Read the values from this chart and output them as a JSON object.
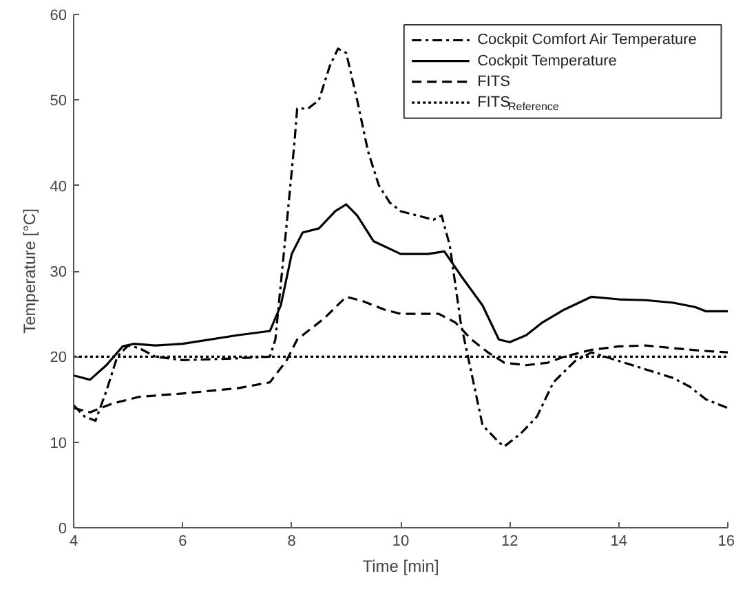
{
  "chart_data": {
    "type": "line",
    "xlabel": "Time [min]",
    "ylabel": "Temperature [°C]",
    "xlim": [
      4,
      16
    ],
    "ylim": [
      0,
      60
    ],
    "xticks": [
      4,
      6,
      8,
      10,
      12,
      14,
      16
    ],
    "yticks": [
      0,
      10,
      20,
      30,
      40,
      50,
      60
    ],
    "grid": false,
    "legend": "top right",
    "marker": "none",
    "series": [
      {
        "name": "Cockpit Comfort Air Temperature",
        "color": "#000000",
        "line_style": "dashdot",
        "x": [
          4,
          4.2,
          4.4,
          4.6,
          4.8,
          5.0,
          5.2,
          5.5,
          6,
          7,
          7.6,
          7.7,
          7.9,
          8.05,
          8.1,
          8.3,
          8.5,
          8.7,
          8.85,
          9.0,
          9.2,
          9.4,
          9.6,
          9.8,
          10,
          10.3,
          10.6,
          10.75,
          10.9,
          11.1,
          11.3,
          11.5,
          11.8,
          11.9,
          12.2,
          12.5,
          12.8,
          13.2,
          13.5,
          14,
          14.5,
          15,
          15.3,
          15.6,
          16
        ],
        "values": [
          14.3,
          13,
          12.5,
          16,
          20,
          21.3,
          21,
          20,
          19.6,
          19.8,
          20,
          22,
          35,
          45,
          49,
          49,
          50,
          54,
          56,
          55.5,
          50,
          44,
          40,
          38,
          37,
          36.5,
          36,
          36.5,
          33,
          24,
          18,
          12,
          10,
          9.5,
          11,
          13,
          17,
          19.5,
          20.5,
          19.5,
          18.5,
          17.5,
          16.5,
          15,
          14
        ]
      },
      {
        "name": "Cockpit Temperature",
        "color": "#000000",
        "line_style": "solid",
        "x": [
          4,
          4.3,
          4.6,
          4.9,
          5.1,
          5.5,
          6,
          7,
          7.6,
          7.8,
          8,
          8.2,
          8.5,
          8.8,
          9.0,
          9.2,
          9.5,
          10,
          10.5,
          10.8,
          11.1,
          11.5,
          11.8,
          12,
          12.3,
          12.6,
          13,
          13.5,
          14,
          14.5,
          15,
          15.4,
          15.6,
          16
        ],
        "values": [
          17.8,
          17.3,
          19,
          21.2,
          21.5,
          21.3,
          21.5,
          22.5,
          23,
          26,
          32,
          34.5,
          35,
          37,
          37.8,
          36.5,
          33.5,
          32,
          32,
          32.3,
          29.5,
          26,
          22,
          21.7,
          22.5,
          24,
          25.5,
          27,
          26.7,
          26.6,
          26.3,
          25.8,
          25.3,
          25.3
        ]
      },
      {
        "name": "FITS",
        "color": "#000000",
        "line_style": "dashed",
        "x": [
          4,
          4.3,
          4.7,
          5.2,
          6,
          7,
          7.6,
          7.9,
          8.1,
          8.6,
          9,
          9.3,
          9.7,
          10,
          10.7,
          11,
          11.3,
          11.6,
          11.9,
          12.3,
          12.7,
          13,
          13.5,
          14,
          14.5,
          15,
          15.5,
          16
        ],
        "values": [
          14,
          13.5,
          14.5,
          15.3,
          15.7,
          16.3,
          17,
          19.5,
          22,
          24.5,
          27,
          26.5,
          25.5,
          25,
          25,
          24,
          22,
          20.5,
          19.3,
          19,
          19.3,
          20,
          20.8,
          21.2,
          21.3,
          21,
          20.7,
          20.5
        ]
      },
      {
        "name": "FITS$_{Reference}$",
        "color": "#000000",
        "line_style": "dotted",
        "x": [
          4,
          16
        ],
        "values": [
          20,
          20
        ]
      }
    ]
  }
}
